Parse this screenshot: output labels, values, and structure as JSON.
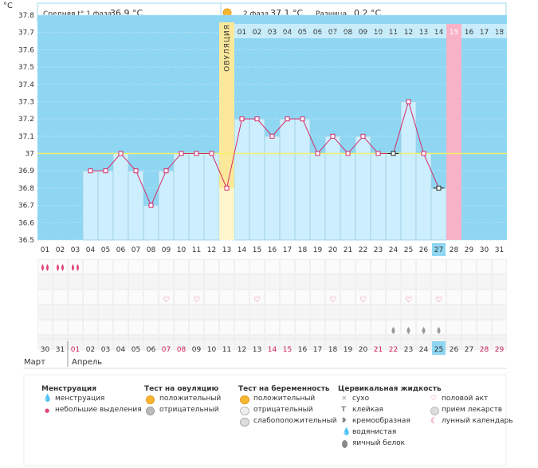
{
  "chart_data": {
    "type": "line",
    "y_unit": "°C",
    "ylim": [
      36.5,
      37.8
    ],
    "y_ticks": [
      "37.8",
      "37.7",
      "37.6",
      "37.5",
      "37.4",
      "37.3",
      "37.2",
      "37.1",
      "37",
      "36.9",
      "36.8",
      "36.7",
      "36.6",
      "36.5"
    ],
    "coverline": 37.0,
    "header": {
      "phase1_label": "Средняя t° 1 фаза",
      "phase1_value": "36.9 °C",
      "phase2_label": "2 фаза",
      "phase2_value": "37.1 °C",
      "diff_label": "Разница",
      "diff_value": "0.2 °C"
    },
    "ovulation_label": "ОВУЛЯЦИЯ",
    "luteal_days": [
      "01",
      "02",
      "03",
      "04",
      "05",
      "06",
      "07",
      "08",
      "09",
      "10",
      "11",
      "12",
      "13",
      "14",
      "15",
      "16",
      "17",
      "18"
    ],
    "cycle_days": [
      "01",
      "02",
      "03",
      "04",
      "05",
      "06",
      "07",
      "08",
      "09",
      "10",
      "11",
      "12",
      "13",
      "14",
      "15",
      "16",
      "17",
      "18",
      "19",
      "20",
      "21",
      "22",
      "23",
      "24",
      "25",
      "26",
      "27",
      "28",
      "29",
      "30",
      "31"
    ],
    "current_cycle_day": "27",
    "dates": [
      "30",
      "31",
      "01",
      "02",
      "03",
      "04",
      "05",
      "06",
      "07",
      "08",
      "09",
      "10",
      "11",
      "12",
      "13",
      "14",
      "15",
      "16",
      "17",
      "18",
      "19",
      "20",
      "21",
      "22",
      "23",
      "24",
      "25",
      "26",
      "27",
      "28",
      "29"
    ],
    "dates_red": [
      2,
      8,
      9,
      15,
      16,
      22,
      23,
      29,
      30
    ],
    "current_date": "25",
    "months": [
      "Март",
      "Апрель"
    ],
    "temperatures": [
      null,
      null,
      null,
      36.9,
      36.9,
      37.0,
      36.9,
      36.7,
      36.9,
      37.0,
      37.0,
      37.0,
      36.8,
      37.2,
      37.2,
      37.1,
      37.2,
      37.2,
      37.0,
      37.1,
      37.0,
      37.1,
      37.0,
      37.0,
      37.3,
      37.0,
      36.8,
      null,
      null,
      null,
      null
    ],
    "menstruation_days": [
      1,
      2,
      3
    ],
    "sex_days": [
      9,
      11,
      15,
      20,
      22,
      25,
      27
    ],
    "fluid_days": [
      24,
      25,
      26,
      27
    ],
    "legend": {
      "menstruation": {
        "title": "Менструация",
        "items": [
          "менструация",
          "небольшие выделения"
        ]
      },
      "ovulation_test": {
        "title": "Тест на овуляцию",
        "items": [
          "положительный",
          "отрицательный"
        ]
      },
      "pregnancy_test": {
        "title": "Тест на беременность",
        "items": [
          "положительный",
          "отрицательный",
          "слабоположительный"
        ]
      },
      "cervical_fluid": {
        "title": "Цервикальная жидкость",
        "items": [
          "сухо",
          "клейкая",
          "кремообразная",
          "водянистая",
          "яичный белок"
        ]
      },
      "other": {
        "items": [
          "половой акт",
          "прием лекарств",
          "лунный календарь"
        ]
      }
    },
    "colors": {
      "sky": "#8fd6f2",
      "bar": "#cdeefc",
      "bar_edge": "#9ccde4",
      "ovulation": "#fce89a",
      "day15": "#f8b2c8",
      "line": "#d42b6a",
      "coverline": "#f2ef6a",
      "header_border": "#9fd8ee"
    }
  }
}
